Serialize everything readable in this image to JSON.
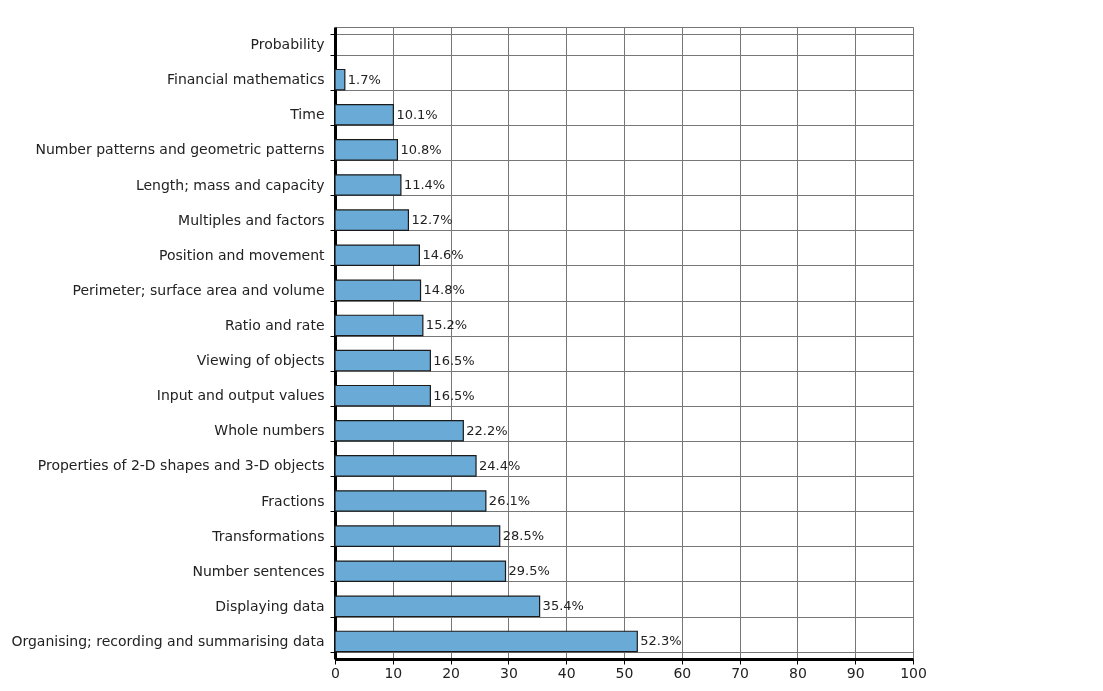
{
  "chart_data": {
    "type": "bar",
    "orientation": "horizontal",
    "categories": [
      "Probability",
      "Financial mathematics",
      "Time",
      "Number patterns and geometric patterns",
      "Length; mass and capacity",
      "Multiples and factors",
      "Position and movement",
      "Perimeter; surface area and volume",
      "Ratio and rate",
      "Viewing of objects",
      "Input and output values",
      "Whole numbers",
      "Properties of 2-D shapes and 3-D objects",
      "Fractions",
      "Transformations",
      "Number sentences",
      "Displaying data",
      "Organising; recording and summarising data"
    ],
    "values": [
      null,
      1.7,
      10.1,
      10.8,
      11.4,
      12.7,
      14.6,
      14.8,
      15.2,
      16.5,
      16.5,
      22.2,
      24.4,
      26.1,
      28.5,
      29.5,
      35.4,
      52.3
    ],
    "value_labels": [
      null,
      "1.7%",
      "10.1%",
      "10.8%",
      "11.4%",
      "12.7%",
      "14.6%",
      "14.8%",
      "15.2%",
      "16.5%",
      "16.5%",
      "22.2%",
      "24.4%",
      "26.1%",
      "28.5%",
      "29.5%",
      "35.4%",
      "52.3%"
    ],
    "color": "#6aaad6",
    "xlim": [
      0,
      100
    ],
    "xticks": [
      0,
      10,
      20,
      30,
      40,
      50,
      60,
      70,
      80,
      90,
      100
    ],
    "grid": true
  }
}
